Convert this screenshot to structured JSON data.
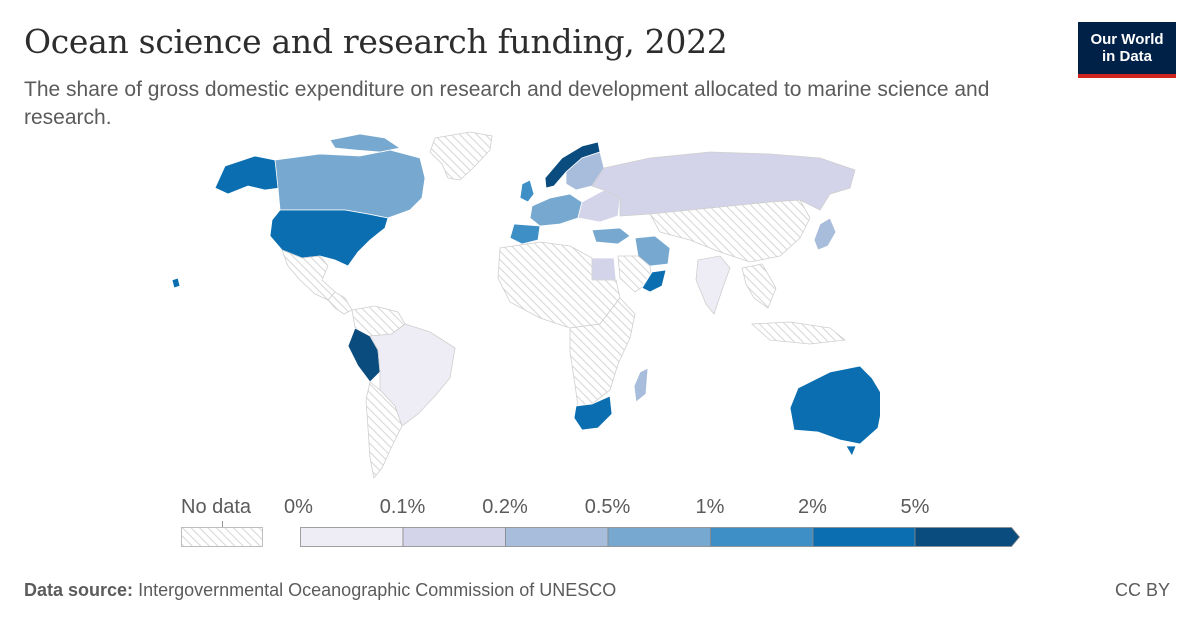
{
  "header": {
    "title": "Ocean science and research funding, 2022",
    "subtitle": "The share of gross domestic expenditure on research and development allocated to marine science and research."
  },
  "logo": {
    "line1": "Our World",
    "line2": "in Data"
  },
  "legend": {
    "no_data_label": "No data",
    "ticks": [
      "0%",
      "0.1%",
      "0.2%",
      "0.5%",
      "1%",
      "2%",
      "5%"
    ],
    "bins": [
      {
        "range": "0%–0.1%",
        "color": "#eeedf6"
      },
      {
        "range": "0.1%–0.2%",
        "color": "#d3d3e9"
      },
      {
        "range": "0.2%–0.5%",
        "color": "#a8bcdc"
      },
      {
        "range": "0.5%–1%",
        "color": "#77a9d0"
      },
      {
        "range": "1%–2%",
        "color": "#3d8fc5"
      },
      {
        "range": "2%–5%",
        "color": "#0a6eb1"
      },
      {
        "range": ">5%",
        "color": "#0b4c7e"
      }
    ]
  },
  "footer": {
    "source_label": "Data source:",
    "source_text": "Intergovernmental Oceanographic Commission of UNESCO",
    "license": "CC BY"
  },
  "colors": {
    "no_data_hatch": "#d6d6d6",
    "border": "#ffffff",
    "logo_bg": "#002147",
    "logo_accent": "#ce261e"
  },
  "regions": [
    {
      "name": "Canada",
      "category": "0.5%–1%"
    },
    {
      "name": "United States",
      "category": "2%–5%"
    },
    {
      "name": "Alaska",
      "category": "2%–5%"
    },
    {
      "name": "Greenland",
      "category": "No data"
    },
    {
      "name": "Mexico",
      "category": "No data"
    },
    {
      "name": "Peru",
      "category": ">5%"
    },
    {
      "name": "Brazil",
      "category": "0%–0.1%"
    },
    {
      "name": "Norway",
      "category": ">5%"
    },
    {
      "name": "Russia",
      "category": "0.1%–0.2%"
    },
    {
      "name": "Turkey",
      "category": "0.5%–1%"
    },
    {
      "name": "Iran",
      "category": "0.5%–1%"
    },
    {
      "name": "Oman",
      "category": "2%–5%"
    },
    {
      "name": "Egypt",
      "category": "0.1%–0.2%"
    },
    {
      "name": "India",
      "category": "0%–0.1%"
    },
    {
      "name": "South Africa",
      "category": "2%–5%"
    },
    {
      "name": "Madagascar",
      "category": "0.2%–0.5%"
    },
    {
      "name": "Japan",
      "category": "0.2%–0.5%"
    },
    {
      "name": "Australia",
      "category": "2%–5%"
    }
  ]
}
